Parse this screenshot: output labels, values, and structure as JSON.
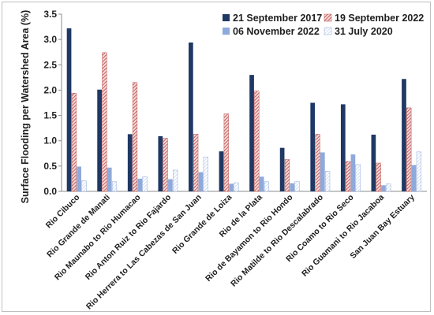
{
  "chart_data": {
    "type": "bar",
    "ylabel": "Surface Flooding per Watershed Area (%)",
    "xlabel": "",
    "ylim": [
      0,
      3.5
    ],
    "yticks": [
      "0.0",
      "0.5",
      "1.0",
      "1.5",
      "2.0",
      "2.5",
      "3.0",
      "3.5"
    ],
    "grid": false,
    "legend_position": "top-right",
    "categories": [
      "Rio Cibuco",
      "Rio Grande de Manati",
      "Rio Maunabo to Rio Humacao",
      "Rio Anton Ruiz to Rio Fajardo",
      "Rio Herrera to Las Cabezas de San Juan",
      "Rio Grande de Loiza",
      "Rio de la Plata",
      "Rio de Bayamon to Rio Hondo",
      "Rio Matilde to Rio Descalabrado",
      "Rio Coamo to Rio Seco",
      "Rio Guamani to Rio Jacaboa",
      "San Juan Bay Estuary"
    ],
    "series": [
      {
        "name": "21 September 2017",
        "color": "#1f3864",
        "pattern": "solid",
        "values": [
          3.22,
          2.01,
          1.13,
          1.09,
          2.94,
          0.79,
          2.3,
          0.86,
          1.75,
          1.72,
          1.12,
          2.22
        ]
      },
      {
        "name": "19 September 2022",
        "color": "#c0504d",
        "pattern": "diagonal-hatch",
        "values": [
          1.94,
          2.74,
          2.15,
          1.05,
          1.13,
          1.53,
          1.98,
          0.63,
          1.13,
          0.59,
          0.56,
          1.65
        ]
      },
      {
        "name": "06 November 2022",
        "color": "#8ea9db",
        "pattern": "solid",
        "values": [
          0.49,
          0.47,
          0.25,
          0.24,
          0.38,
          0.15,
          0.29,
          0.16,
          0.77,
          0.73,
          0.12,
          0.52
        ]
      },
      {
        "name": "31 July 2020",
        "color": "#8ea9db",
        "pattern": "light-hatch",
        "values": [
          0.21,
          0.19,
          0.29,
          0.42,
          0.68,
          0.17,
          0.19,
          0.2,
          0.4,
          0.53,
          0.15,
          0.78
        ]
      }
    ]
  }
}
